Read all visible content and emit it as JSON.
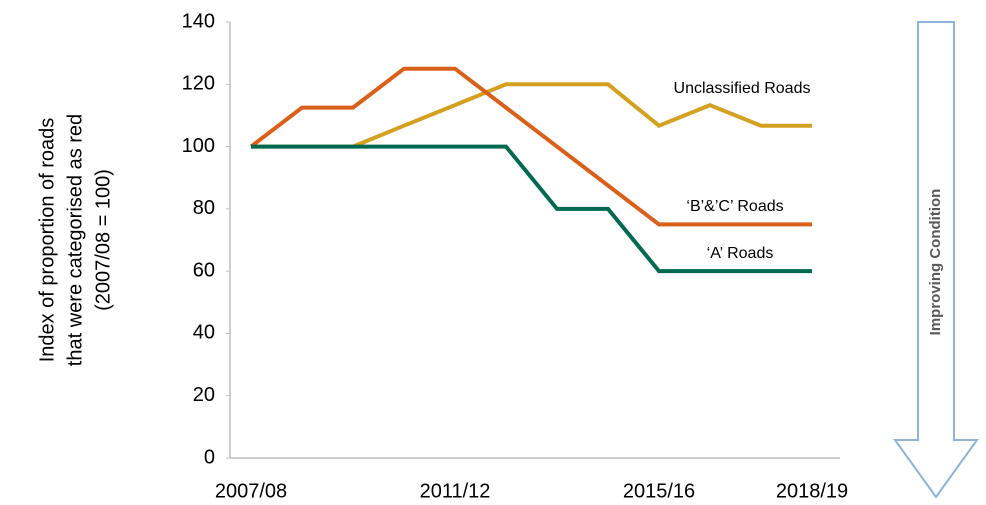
{
  "chart_data": {
    "type": "line",
    "ylabel_lines": [
      "Index  of proportion of roads",
      "that were categorised as red",
      "(2007/08 = 100)"
    ],
    "categories": [
      "2007/08",
      null,
      null,
      null,
      "2011/12",
      null,
      null,
      null,
      "2015/16",
      null,
      null,
      "2018/19"
    ],
    "series": [
      {
        "name": "Unclassified Roads",
        "color": "#d4a020",
        "values": [
          100,
          100,
          100,
          106.7,
          113.3,
          120,
          120,
          120,
          106.7,
          113.3,
          106.7,
          106.7
        ]
      },
      {
        "name": "‘B’&’C’ Roads",
        "color": "#d9601a",
        "values": [
          100,
          112.5,
          112.5,
          125,
          125,
          112.5,
          100,
          87.5,
          75,
          75,
          75,
          75
        ]
      },
      {
        "name": "‘A’ Roads",
        "color": "#00694f",
        "values": [
          100,
          100,
          100,
          100,
          100,
          100,
          80,
          80,
          60,
          60,
          60,
          60
        ]
      }
    ],
    "ylim": [
      0,
      140
    ],
    "yticks": [
      0,
      20,
      40,
      60,
      80,
      100,
      120,
      140
    ],
    "annotation": "Improving  Condition"
  }
}
